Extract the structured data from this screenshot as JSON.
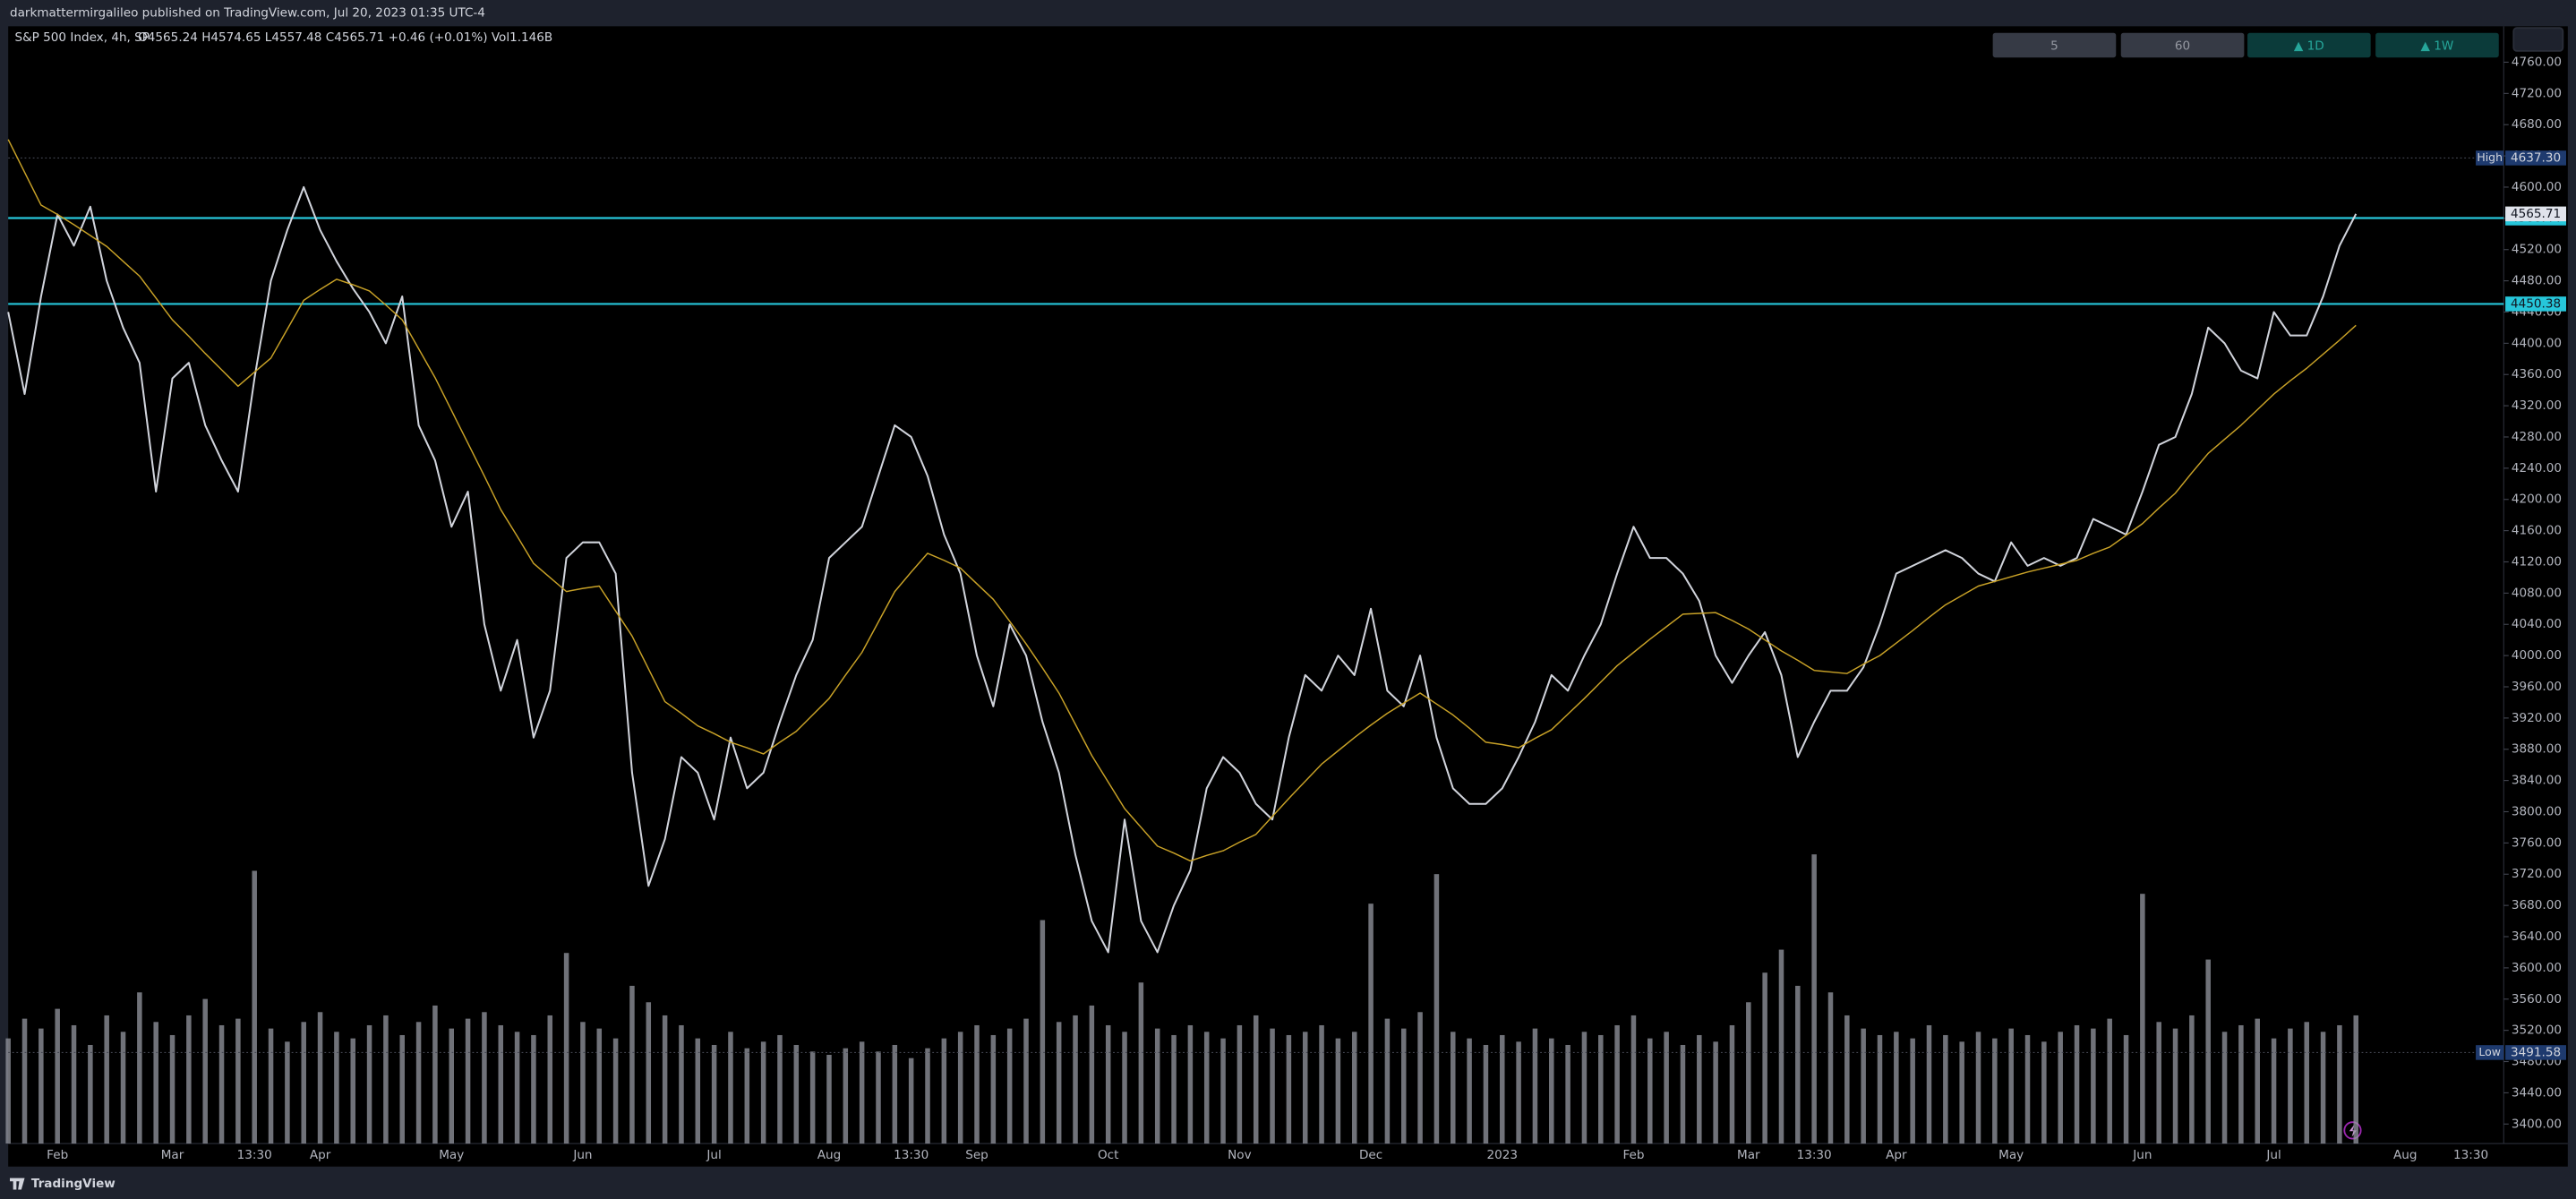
{
  "header": "darkmattermirgalileo published on TradingView.com, Jul 20, 2023 01:35 UTC-4",
  "footer": "TradingView",
  "intervals": [
    "5",
    "60",
    "▲ 1D",
    "▲ 1W"
  ],
  "chart_data": {
    "type": "line",
    "title": "S&P 500 Index, 4h, SP",
    "ohlc_legend": "O4565.24 H4574.65 L4557.48 C4565.71 +0.46 (+0.01%) Vol1.146B",
    "grid": false,
    "categories": [
      null,
      null,
      null,
      "Feb",
      null,
      null,
      null,
      null,
      null,
      null,
      "Mar",
      null,
      null,
      null,
      null,
      "13:30",
      null,
      null,
      null,
      "Apr",
      null,
      null,
      null,
      null,
      null,
      null,
      null,
      "May",
      null,
      null,
      null,
      null,
      null,
      null,
      null,
      "Jun",
      null,
      null,
      null,
      null,
      null,
      null,
      null,
      "Jul",
      null,
      null,
      null,
      null,
      null,
      null,
      "Aug",
      null,
      null,
      null,
      null,
      "13:30",
      null,
      null,
      null,
      "Sep",
      null,
      null,
      null,
      null,
      null,
      null,
      null,
      "Oct",
      null,
      null,
      null,
      null,
      null,
      null,
      null,
      "Nov",
      null,
      null,
      null,
      null,
      null,
      null,
      null,
      "Dec",
      null,
      null,
      null,
      null,
      null,
      null,
      null,
      "2023",
      null,
      null,
      null,
      null,
      null,
      null,
      null,
      "Feb",
      null,
      null,
      null,
      null,
      null,
      null,
      "Mar",
      null,
      null,
      null,
      "13:30",
      null,
      null,
      null,
      null,
      "Apr",
      null,
      null,
      null,
      null,
      null,
      null,
      "May",
      null,
      null,
      null,
      null,
      null,
      null,
      null,
      "Jun",
      null,
      null,
      null,
      null,
      null,
      null,
      null,
      "Jul",
      null,
      null,
      null,
      null,
      null,
      null,
      null,
      "Aug",
      null,
      null,
      null,
      "13:30",
      null
    ],
    "series": [
      {
        "name": "S&P 500 Index",
        "color": "#d1d4dc",
        "values": [
          4440,
          4335,
          4460,
          4565,
          4525,
          4575,
          4480,
          4420,
          4375,
          4210,
          4355,
          4375,
          4295,
          4250,
          4210,
          4355,
          4480,
          4545,
          4600,
          4545,
          4505,
          4470,
          4440,
          4400,
          4460,
          4295,
          4250,
          4165,
          4210,
          4040,
          3955,
          4020,
          3895,
          3955,
          4125,
          4145,
          4145,
          4105,
          3850,
          3705,
          3765,
          3870,
          3850,
          3790,
          3895,
          3830,
          3850,
          3915,
          3975,
          4020,
          4125,
          4145,
          4165,
          4230,
          4295,
          4280,
          4230,
          4155,
          4105,
          4000,
          3935,
          4040,
          4000,
          3915,
          3850,
          3745,
          3660,
          3620,
          3790,
          3660,
          3620,
          3680,
          3725,
          3830,
          3870,
          3850,
          3810,
          3790,
          3895,
          3975,
          3955,
          4000,
          3975,
          4060,
          3955,
          3935,
          4000,
          3895,
          3830,
          3810,
          3810,
          3830,
          3870,
          3915,
          3975,
          3955,
          4000,
          4040,
          4105,
          4165,
          4125,
          4125,
          4105,
          4070,
          4000,
          3965,
          4000,
          4030,
          3975,
          3870,
          3915,
          3955,
          3955,
          3985,
          4040,
          4105,
          4115,
          4125,
          4135,
          4125,
          4105,
          4095,
          4145,
          4115,
          4125,
          4115,
          4125,
          4175,
          4165,
          4155,
          4210,
          4270,
          4280,
          4335,
          4420,
          4400,
          4365,
          4355,
          4440,
          4410,
          4410,
          4460,
          4525,
          4565.71,
          null,
          null,
          null,
          null,
          null,
          null,
          null,
          null
        ]
      },
      {
        "color": "#c9a227",
        "values": [
          4661,
          4619,
          4577,
          4565,
          4552,
          4538,
          4524,
          4505,
          4486,
          4458,
          4430,
          4409,
          4387,
          4366,
          4345,
          4363,
          4381,
          4418,
          4455,
          4469,
          4482,
          4475,
          4467,
          4449,
          4430,
          4393,
          4356,
          4314,
          4272,
          4230,
          4187,
          4153,
          4118,
          4100,
          4082,
          4086,
          4089,
          4057,
          4025,
          3983,
          3941,
          3926,
          3910,
          3900,
          3889,
          3882,
          3874,
          3889,
          3903,
          3924,
          3945,
          3975,
          4004,
          4043,
          4082,
          4107,
          4131,
          4122,
          4112,
          4092,
          4072,
          4044,
          4015,
          3984,
          3952,
          3912,
          3872,
          3838,
          3804,
          3780,
          3756,
          3747,
          3737,
          3744,
          3750,
          3761,
          3771,
          3794,
          3817,
          3839,
          3861,
          3878,
          3895,
          3911,
          3926,
          3939,
          3952,
          3938,
          3924,
          3907,
          3889,
          3886,
          3882,
          3894,
          3905,
          3925,
          3945,
          3966,
          3987,
          4004,
          4021,
          4037,
          4053,
          4054,
          4055,
          4045,
          4034,
          4020,
          4006,
          3994,
          3981,
          3979,
          3977,
          3989,
          4000,
          4016,
          4032,
          4049,
          4065,
          4077,
          4089,
          4095,
          4101,
          4107,
          4112,
          4117,
          4122,
          4131,
          4139,
          4154,
          4169,
          4189,
          4208,
          4234,
          4259,
          4277,
          4295,
          4315,
          4335,
          4352,
          4368,
          4386,
          4404,
          4423,
          null,
          null,
          null,
          null,
          null,
          null,
          null,
          null
        ]
      }
    ],
    "volume": {
      "color": "#9598a1",
      "ylim": [
        0,
        10
      ],
      "values": [
        3.2,
        3.8,
        3.5,
        4.1,
        3.6,
        3.0,
        3.9,
        3.4,
        4.6,
        3.7,
        3.3,
        3.9,
        4.4,
        3.6,
        3.8,
        8.3,
        3.5,
        3.1,
        3.7,
        4.0,
        3.4,
        3.2,
        3.6,
        3.9,
        3.3,
        3.7,
        4.2,
        3.5,
        3.8,
        4.0,
        3.6,
        3.4,
        3.3,
        3.9,
        5.8,
        3.7,
        3.5,
        3.2,
        4.8,
        4.3,
        3.9,
        3.6,
        3.2,
        3.0,
        3.4,
        2.9,
        3.1,
        3.3,
        3.0,
        2.8,
        2.7,
        2.9,
        3.1,
        2.8,
        3.0,
        2.6,
        2.9,
        3.2,
        3.4,
        3.6,
        3.3,
        3.5,
        3.8,
        6.8,
        3.7,
        3.9,
        4.2,
        3.6,
        3.4,
        4.9,
        3.5,
        3.3,
        3.6,
        3.4,
        3.2,
        3.6,
        3.9,
        3.5,
        3.3,
        3.4,
        3.6,
        3.2,
        3.4,
        7.3,
        3.8,
        3.5,
        4.0,
        8.2,
        3.4,
        3.2,
        3.0,
        3.3,
        3.1,
        3.5,
        3.2,
        3.0,
        3.4,
        3.3,
        3.6,
        3.9,
        3.2,
        3.4,
        3.0,
        3.3,
        3.1,
        3.6,
        4.3,
        5.2,
        5.9,
        4.8,
        8.8,
        4.6,
        3.9,
        3.5,
        3.3,
        3.4,
        3.2,
        3.6,
        3.3,
        3.1,
        3.4,
        3.2,
        3.5,
        3.3,
        3.1,
        3.4,
        3.6,
        3.5,
        3.8,
        3.3,
        7.6,
        3.7,
        3.5,
        3.9,
        5.6,
        3.4,
        3.6,
        3.8,
        3.2,
        3.5,
        3.7,
        3.4,
        3.6,
        3.9,
        null,
        null,
        null,
        null,
        null,
        null,
        null,
        null
      ]
    },
    "ylim": [
      3375,
      4806
    ],
    "yticks": [
      {
        "value": 3400,
        "label": "3400.00"
      },
      {
        "value": 3440,
        "label": "3440.00"
      },
      {
        "value": 3480,
        "label": "3480.00"
      },
      {
        "value": 3520,
        "label": "3520.00"
      },
      {
        "value": 3560,
        "label": "3560.00"
      },
      {
        "value": 3600,
        "label": "3600.00"
      },
      {
        "value": 3640,
        "label": "3640.00"
      },
      {
        "value": 3680,
        "label": "3680.00"
      },
      {
        "value": 3720,
        "label": "3720.00"
      },
      {
        "value": 3760,
        "label": "3760.00"
      },
      {
        "value": 3800,
        "label": "3800.00"
      },
      {
        "value": 3840,
        "label": "3840.00"
      },
      {
        "value": 3880,
        "label": "3880.00"
      },
      {
        "value": 3920,
        "label": "3920.00"
      },
      {
        "value": 3960,
        "label": "3960.00"
      },
      {
        "value": 4000,
        "label": "4000.00"
      },
      {
        "value": 4040,
        "label": "4040.00"
      },
      {
        "value": 4080,
        "label": "4080.00"
      },
      {
        "value": 4120,
        "label": "4120.00"
      },
      {
        "value": 4160,
        "label": "4160.00"
      },
      {
        "value": 4200,
        "label": "4200.00"
      },
      {
        "value": 4240,
        "label": "4240.00"
      },
      {
        "value": 4280,
        "label": "4280.00"
      },
      {
        "value": 4320,
        "label": "4320.00"
      },
      {
        "value": 4360,
        "label": "4360.00"
      },
      {
        "value": 4400,
        "label": "4400.00"
      },
      {
        "value": 4440,
        "label": "4440.00"
      },
      {
        "value": 4480,
        "label": "4480.00"
      },
      {
        "value": 4520,
        "label": "4520.00"
      },
      {
        "value": 4560,
        "label": "4560.00"
      },
      {
        "value": 4600,
        "label": "4600.00"
      },
      {
        "value": 4640,
        "label": "4640.00"
      },
      {
        "value": 4680,
        "label": "4680.00"
      },
      {
        "value": 4720,
        "label": "4720.00"
      },
      {
        "value": 4760,
        "label": "4760.00"
      }
    ],
    "levels": [
      {
        "value": 4560.44,
        "color": "#26c6da"
      },
      {
        "value": 4450.38,
        "color": "#26c6da"
      }
    ],
    "last_price": 4565.71,
    "high": {
      "name": "High",
      "price": {
        "value": 4637.3,
        "label": "4637.30"
      }
    },
    "low": {
      "name": "Low",
      "price": 3491.58
    }
  }
}
